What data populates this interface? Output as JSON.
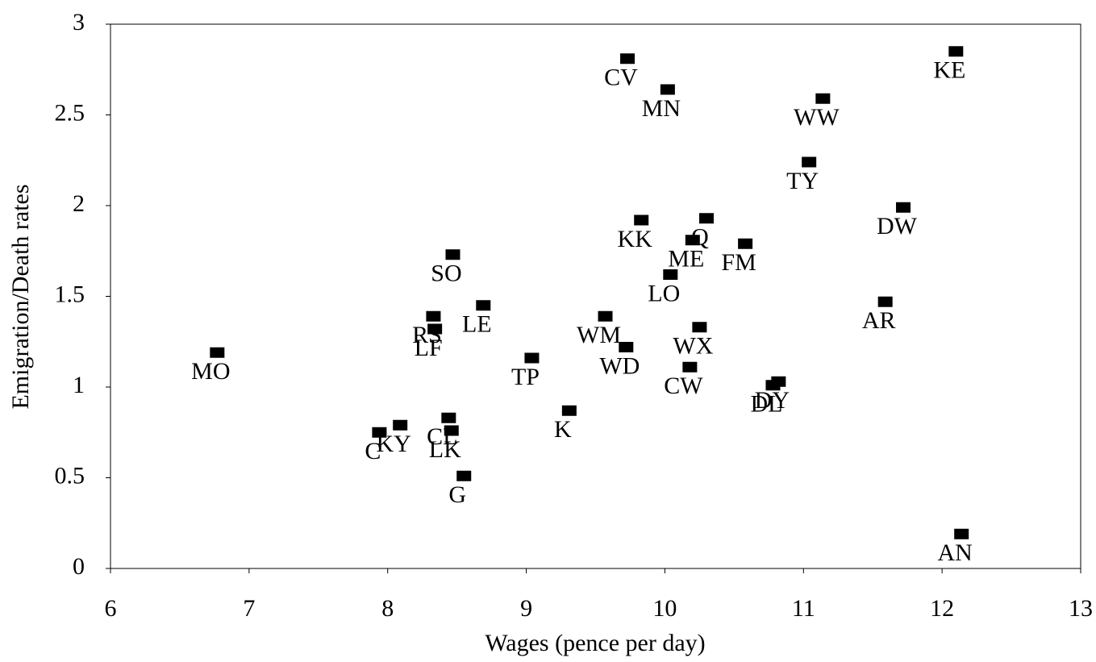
{
  "chart_data": {
    "type": "scatter",
    "x_label": "Wages (pence per day)",
    "y_label": "Emigration/Death rates",
    "color": "#000000",
    "xlim": [
      6,
      13
    ],
    "xticks": [
      6,
      7,
      8,
      9,
      10,
      11,
      12,
      13
    ],
    "ylim": [
      0,
      3
    ],
    "yticks": [
      0,
      0.5,
      1,
      1.5,
      2,
      2.5,
      3
    ],
    "labels": [
      "CV",
      "MN",
      "KE",
      "WW",
      "TY",
      "DW",
      "KK",
      "Q",
      "ME",
      "FM",
      "LO",
      "SO",
      "LE",
      "RS",
      "LF",
      "WM",
      "WD",
      "WX",
      "AR",
      "MO",
      "TP",
      "CW",
      "DL",
      "DY",
      "K",
      "C",
      "KY",
      "CL",
      "LK",
      "G",
      "AN"
    ],
    "x": [
      9.73,
      10.02,
      12.1,
      11.14,
      11.04,
      11.72,
      9.83,
      10.3,
      10.2,
      10.58,
      10.04,
      8.47,
      8.69,
      8.33,
      8.34,
      9.57,
      9.72,
      10.25,
      11.59,
      6.77,
      9.04,
      10.18,
      10.78,
      10.82,
      9.31,
      7.94,
      8.09,
      8.44,
      8.46,
      8.55,
      12.14
    ],
    "values": [
      2.81,
      2.64,
      2.85,
      2.59,
      2.24,
      1.99,
      1.92,
      1.93,
      1.81,
      1.79,
      1.62,
      1.73,
      1.45,
      1.39,
      1.32,
      1.39,
      1.22,
      1.33,
      1.47,
      1.19,
      1.16,
      1.11,
      1.01,
      1.03,
      0.87,
      0.75,
      0.79,
      0.83,
      0.76,
      0.51,
      0.19
    ]
  }
}
